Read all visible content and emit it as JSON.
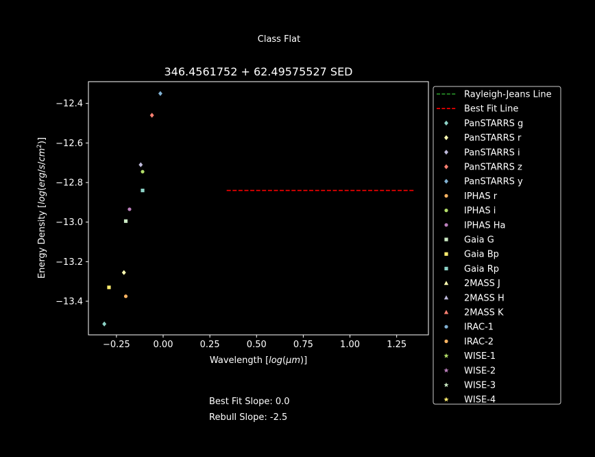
{
  "figure": {
    "suptitle": "Class Flat",
    "note_best_fit": "Best Fit Slope: 0.0",
    "note_rebull": "Rebull Slope: -2.5"
  },
  "chart_data": {
    "type": "scatter",
    "title": "346.4561752 + 62.49575527 SED",
    "xlabel": "Wavelength [log(μm)]",
    "ylabel": "Energy Density [log(erg/s/cm²)]",
    "xlim": [
      -0.4,
      1.42
    ],
    "ylim": [
      -13.57,
      -12.29
    ],
    "grid": false,
    "legend_position": "outside-right",
    "x_ticks": [
      -0.25,
      0.0,
      0.25,
      0.5,
      0.75,
      1.0,
      1.25
    ],
    "x_tick_labels": [
      "−0.25",
      "0.00",
      "0.25",
      "0.50",
      "0.75",
      "1.00",
      "1.25"
    ],
    "y_ticks": [
      -12.4,
      -12.6,
      -12.8,
      -13.0,
      -13.2,
      -13.4
    ],
    "y_tick_labels": [
      "−12.4",
      "−12.6",
      "−12.8",
      "−13.0",
      "−13.2",
      "−13.4"
    ],
    "lines": [
      {
        "name": "Rayleigh-Jeans Line",
        "color": "#2ca02c",
        "style": "dashed",
        "points": []
      },
      {
        "name": "Best Fit Line",
        "color": "#ff0000",
        "style": "dashed",
        "points": [
          [
            0.34,
            -12.84
          ],
          [
            1.35,
            -12.84
          ]
        ]
      }
    ],
    "series": [
      {
        "name": "PanSTARRS g",
        "marker": "diamond",
        "color": "#8dd3c7",
        "points": [
          [
            -0.315,
            -13.515
          ]
        ]
      },
      {
        "name": "PanSTARRS r",
        "marker": "diamond",
        "color": "#ffffb3",
        "points": [
          [
            -0.21,
            -13.255
          ]
        ]
      },
      {
        "name": "PanSTARRS i",
        "marker": "diamond",
        "color": "#bebada",
        "points": [
          [
            -0.12,
            -12.71
          ]
        ]
      },
      {
        "name": "PanSTARRS z",
        "marker": "diamond",
        "color": "#fb8072",
        "points": [
          [
            -0.06,
            -12.46
          ]
        ]
      },
      {
        "name": "PanSTARRS y",
        "marker": "diamond",
        "color": "#80b1d3",
        "points": [
          [
            -0.015,
            -12.35
          ]
        ]
      },
      {
        "name": "IPHAS r",
        "marker": "circle",
        "color": "#fdb462",
        "points": [
          [
            -0.2,
            -13.375
          ]
        ]
      },
      {
        "name": "IPHAS i",
        "marker": "circle",
        "color": "#b3de69",
        "points": [
          [
            -0.11,
            -12.745
          ]
        ]
      },
      {
        "name": "IPHAS Ha",
        "marker": "circle",
        "color": "#bc80bd",
        "points": [
          [
            -0.18,
            -12.935
          ]
        ]
      },
      {
        "name": "Gaia G",
        "marker": "square",
        "color": "#ccebc5",
        "points": [
          [
            -0.2,
            -12.995
          ]
        ]
      },
      {
        "name": "Gaia Bp",
        "marker": "square",
        "color": "#ffed6f",
        "points": [
          [
            -0.29,
            -13.33
          ]
        ]
      },
      {
        "name": "Gaia Rp",
        "marker": "square",
        "color": "#8dd3c7",
        "points": [
          [
            -0.11,
            -12.84
          ]
        ]
      },
      {
        "name": "2MASS J",
        "marker": "triangle",
        "color": "#ffffb3",
        "points": []
      },
      {
        "name": "2MASS H",
        "marker": "triangle",
        "color": "#bebada",
        "points": []
      },
      {
        "name": "2MASS K",
        "marker": "triangle",
        "color": "#fb8072",
        "points": []
      },
      {
        "name": "IRAC-1",
        "marker": "circle",
        "color": "#80b1d3",
        "points": []
      },
      {
        "name": "IRAC-2",
        "marker": "circle",
        "color": "#fdb462",
        "points": []
      },
      {
        "name": "WISE-1",
        "marker": "star",
        "color": "#b3de69",
        "points": []
      },
      {
        "name": "WISE-2",
        "marker": "star",
        "color": "#bc80bd",
        "points": []
      },
      {
        "name": "WISE-3",
        "marker": "star",
        "color": "#ccebc5",
        "points": []
      },
      {
        "name": "WISE-4",
        "marker": "star",
        "color": "#ffed6f",
        "points": []
      }
    ]
  }
}
